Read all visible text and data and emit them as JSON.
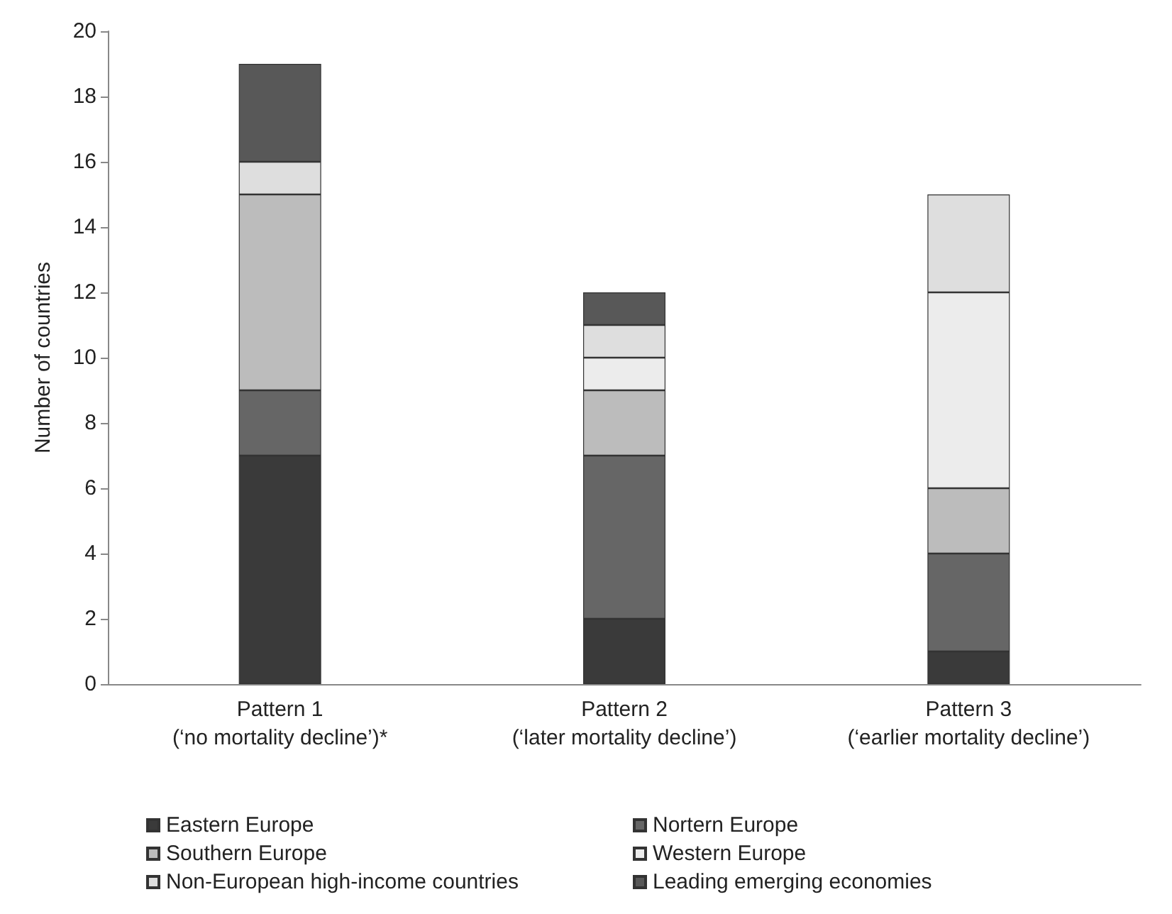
{
  "chart_data": {
    "type": "bar",
    "stacked": true,
    "ylabel": "Number of countries",
    "categories": [
      "Pattern 1\n(‘no mortality decline’)*",
      "Pattern 2\n(‘later mortality decline’)",
      "Pattern 3\n(‘earlier mortality decline’)"
    ],
    "series": [
      {
        "name": "Eastern Europe",
        "color": "#3a3a3a",
        "values": [
          7,
          2,
          1
        ]
      },
      {
        "name": "Nortern Europe",
        "color": "#666666",
        "values": [
          2,
          5,
          3
        ]
      },
      {
        "name": "Southern Europe",
        "color": "#bcbcbc",
        "values": [
          6,
          2,
          2
        ]
      },
      {
        "name": "Western Europe",
        "color": "#ececec",
        "values": [
          0,
          1,
          6
        ]
      },
      {
        "name": "Non-European high-income countries",
        "color": "#dedede",
        "values": [
          1,
          1,
          3
        ]
      },
      {
        "name": "Leading emerging economies",
        "color": "#585858",
        "values": [
          3,
          1,
          0
        ]
      }
    ],
    "ylim": [
      0,
      20
    ],
    "yticks": [
      0,
      2,
      4,
      6,
      8,
      10,
      12,
      14,
      16,
      18,
      20
    ],
    "grid": false,
    "legend": "bottom"
  }
}
